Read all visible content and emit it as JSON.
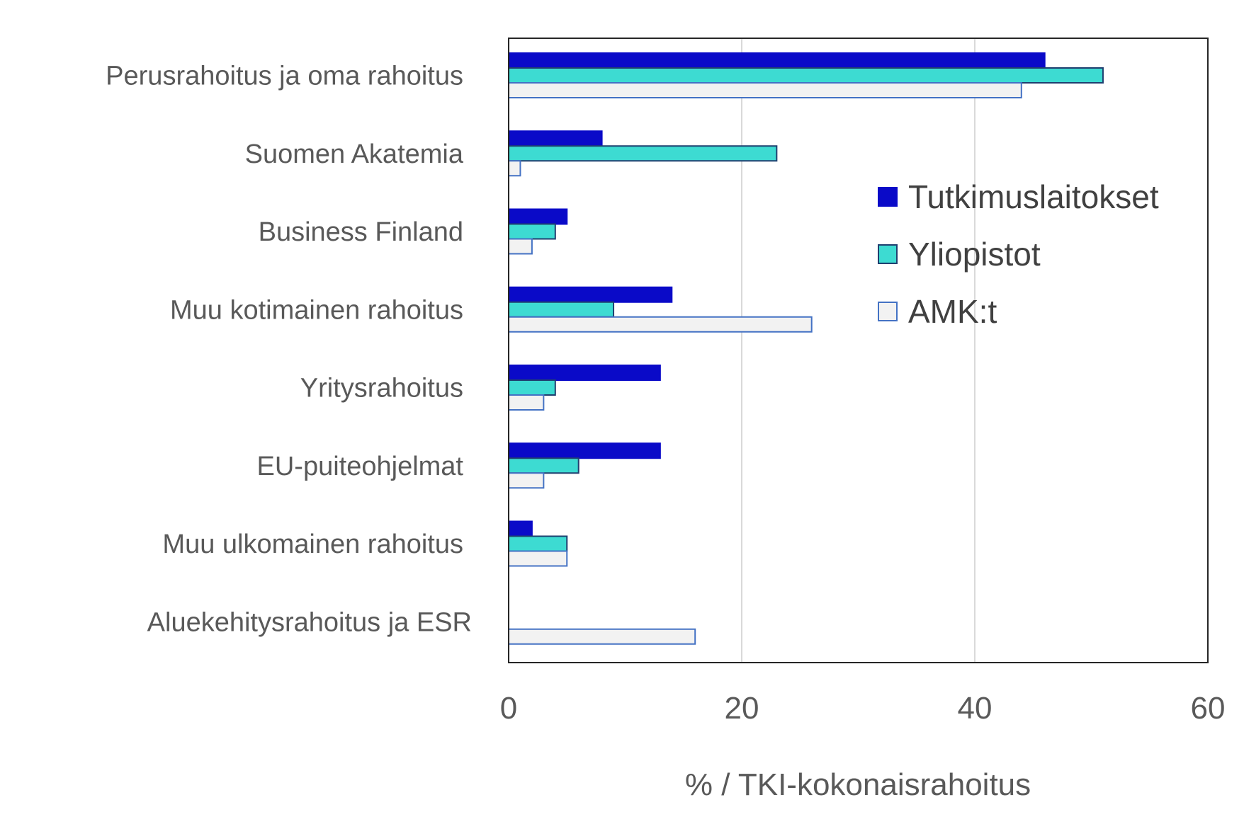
{
  "chart_data": {
    "type": "bar",
    "orientation": "horizontal",
    "categories": [
      "Perusrahoitus ja oma rahoitus",
      "Suomen Akatemia",
      "Business Finland",
      "Muu kotimainen rahoitus",
      "Yritysrahoitus",
      "EU-puiteohjelmat",
      "Muu ulkomainen rahoitus",
      "Aluekehitysrahoitus ja ESR"
    ],
    "series": [
      {
        "name": "Tutkimuslaitokset",
        "color": "#0a0ac8",
        "stroke": "#0a0ac8",
        "values": [
          46,
          8,
          5,
          14,
          13,
          13,
          2,
          0
        ]
      },
      {
        "name": "Yliopistot",
        "color": "#3ddbd2",
        "stroke": "#1f3f6f",
        "values": [
          51,
          23,
          4,
          9,
          4,
          6,
          5,
          0
        ]
      },
      {
        "name": "AMK:t",
        "color": "#f2f2f2",
        "stroke": "#4472c4",
        "values": [
          44,
          1,
          2,
          26,
          3,
          3,
          5,
          16
        ]
      }
    ],
    "xlabel": "% / TKI-kokonaisrahoitus",
    "xlim": [
      0,
      60
    ],
    "xticks": [
      "0",
      "20",
      "40",
      "60"
    ],
    "grid": true,
    "legend": "right"
  }
}
